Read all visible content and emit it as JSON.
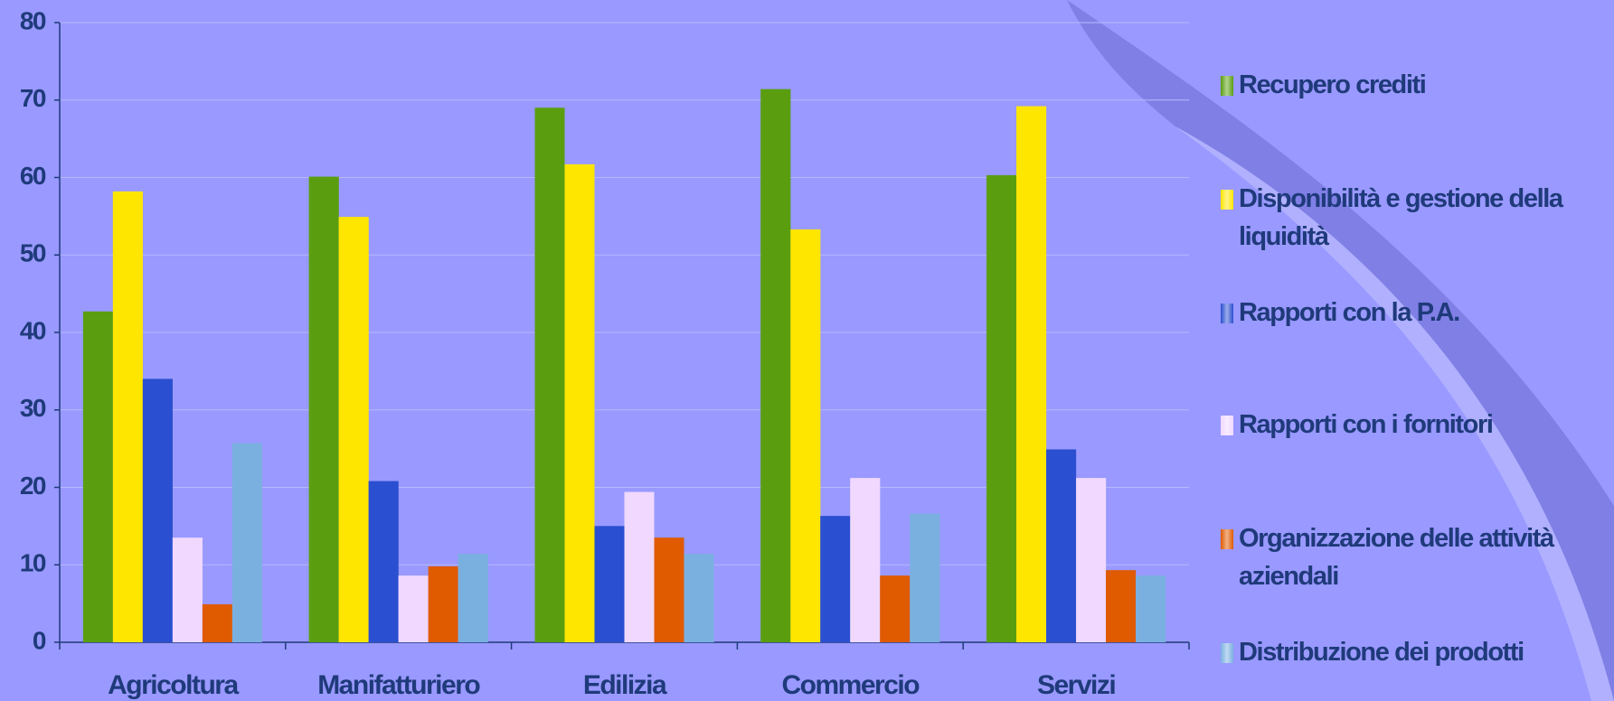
{
  "chart_data": {
    "type": "bar",
    "categories": [
      "Agricoltura",
      "Manifatturiero",
      "Edilizia",
      "Commercio",
      "Servizi"
    ],
    "series": [
      {
        "name": "Recupero crediti",
        "color": "#5a9e10",
        "values": [
          42.7,
          60.1,
          69.0,
          71.4,
          60.3
        ]
      },
      {
        "name": "Disponibilità e gestione della liquidità",
        "color": "#ffe600",
        "values": [
          58.2,
          54.9,
          61.7,
          53.3,
          69.2
        ]
      },
      {
        "name": "Rapporti con la P.A.",
        "color": "#2a4fd0",
        "values": [
          34.0,
          20.8,
          15.0,
          16.3,
          24.9
        ]
      },
      {
        "name": "Rapporti con i fornitori",
        "color": "#f0d8ff",
        "values": [
          13.5,
          8.6,
          19.4,
          21.2,
          21.2
        ]
      },
      {
        "name": "Organizzazione delle attività aziendali",
        "color": "#e05a00",
        "values": [
          4.9,
          9.8,
          13.5,
          8.6,
          9.3
        ]
      },
      {
        "name": "Distribuzione dei prodotti",
        "color": "#7ab0e0",
        "values": [
          25.7,
          11.4,
          11.4,
          16.6,
          8.6
        ]
      }
    ],
    "ylim": [
      0,
      80
    ],
    "yticks": [
      0,
      10,
      20,
      30,
      40,
      50,
      60,
      70,
      80
    ],
    "grid": true
  }
}
